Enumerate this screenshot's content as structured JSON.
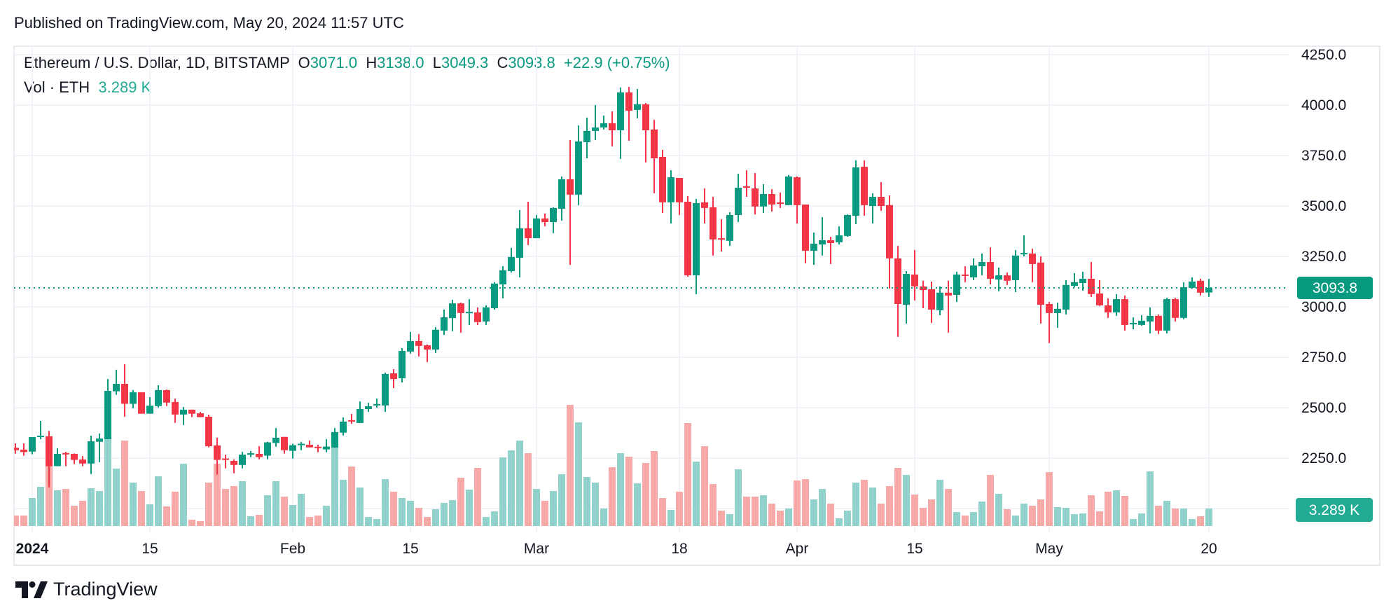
{
  "header": {
    "published": "Published on TradingView.com, May 20, 2024 11:57 UTC"
  },
  "legend": {
    "symbol": "Ethereum / U.S. Dollar, 1D, BITSTAMP",
    "open_label": "O",
    "open": "3071.0",
    "high_label": "H",
    "high": "3138.0",
    "low_label": "L",
    "low": "3049.3",
    "close_label": "C",
    "close": "3093.8",
    "change": "+22.9 (+0.75%)",
    "vol_label": "Vol · ETH",
    "vol_value": "3.289 K"
  },
  "badges": {
    "last_price": "3093.8",
    "last_volume": "3.289 K"
  },
  "footer": {
    "logo_text": "TradingView"
  },
  "colors": {
    "up": "#089981",
    "down": "#F23645",
    "vol_up": "#92d2cc",
    "vol_down": "#f7a9a7",
    "vol_badge": "#22ab94",
    "grid": "#f0f3fa"
  },
  "chart_data": {
    "type": "candlestick",
    "symbol": "ETH/USD",
    "interval": "1D",
    "price_ticks": [
      2250,
      2500,
      2750,
      3000,
      3250,
      3500,
      3750,
      4000,
      4250
    ],
    "price_tick_labels": [
      "2250.0",
      "2500.0",
      "2750.0",
      "3000.0",
      "3250.0",
      "3500.0",
      "3750.0",
      "4000.0",
      "4250.0"
    ],
    "ylim": [
      2000,
      4250
    ],
    "grid": true,
    "volume_unit": "K ETH",
    "time_axis": [
      {
        "label": "2024",
        "date": "2024-01-01",
        "bold": true
      },
      {
        "label": "15",
        "date": "2024-01-15"
      },
      {
        "label": "Feb",
        "date": "2024-02-01"
      },
      {
        "label": "15",
        "date": "2024-02-15"
      },
      {
        "label": "Mar",
        "date": "2024-03-01"
      },
      {
        "label": "18",
        "date": "2024-03-18"
      },
      {
        "label": "Apr",
        "date": "2024-04-01"
      },
      {
        "label": "15",
        "date": "2024-04-15"
      },
      {
        "label": "May",
        "date": "2024-05-01"
      },
      {
        "label": "20",
        "date": "2024-05-20"
      }
    ],
    "columns": [
      "date",
      "open",
      "high",
      "low",
      "close",
      "volume"
    ],
    "candles": [
      [
        "2023-12-30",
        2301,
        2323,
        2272,
        2289,
        1.97
      ],
      [
        "2023-12-31",
        2292,
        2323,
        2262,
        2280,
        1.97
      ],
      [
        "2024-01-01",
        2282,
        2354,
        2269,
        2354,
        5.26
      ],
      [
        "2024-01-02",
        2354,
        2434,
        2344,
        2361,
        7.37
      ],
      [
        "2024-01-03",
        2358,
        2385,
        2105,
        2210,
        11.62
      ],
      [
        "2024-01-04",
        2210,
        2299,
        2210,
        2271,
        6.71
      ],
      [
        "2024-01-05",
        2275,
        2281,
        2210,
        2269,
        6.97
      ],
      [
        "2024-01-06",
        2271,
        2273,
        2220,
        2241,
        3.81
      ],
      [
        "2024-01-07",
        2243,
        2260,
        2210,
        2223,
        4.74
      ],
      [
        "2024-01-08",
        2223,
        2361,
        2171,
        2333,
        7.1
      ],
      [
        "2024-01-09",
        2331,
        2372,
        2230,
        2347,
        6.58
      ],
      [
        "2024-01-10",
        2344,
        2642,
        2344,
        2583,
        16.58
      ],
      [
        "2024-01-11",
        2581,
        2688,
        2564,
        2618,
        10.79
      ],
      [
        "2024-01-12",
        2618,
        2715,
        2455,
        2519,
        16.05
      ],
      [
        "2024-01-13",
        2519,
        2587,
        2498,
        2576,
        8.16
      ],
      [
        "2024-01-14",
        2576,
        2576,
        2470,
        2470,
        6.58
      ],
      [
        "2024-01-15",
        2470,
        2552,
        2470,
        2510,
        4.08
      ],
      [
        "2024-01-16",
        2508,
        2611,
        2501,
        2587,
        9.34
      ],
      [
        "2024-01-17",
        2587,
        2590,
        2508,
        2525,
        3.68
      ],
      [
        "2024-01-18",
        2528,
        2545,
        2425,
        2466,
        6.45
      ],
      [
        "2024-01-19",
        2466,
        2503,
        2414,
        2490,
        11.71
      ],
      [
        "2024-01-20",
        2490,
        2490,
        2453,
        2470,
        1.18
      ],
      [
        "2024-01-21",
        2472,
        2479,
        2453,
        2453,
        0.92
      ],
      [
        "2024-01-22",
        2455,
        2465,
        2303,
        2309,
        8.16
      ],
      [
        "2024-01-23",
        2313,
        2351,
        2168,
        2241,
        11.71
      ],
      [
        "2024-01-24",
        2248,
        2267,
        2199,
        2241,
        6.97
      ],
      [
        "2024-01-25",
        2236,
        2244,
        2175,
        2216,
        7.5
      ],
      [
        "2024-01-26",
        2216,
        2281,
        2199,
        2267,
        8.42
      ],
      [
        "2024-01-27",
        2267,
        2285,
        2255,
        2274,
        1.84
      ],
      [
        "2024-01-28",
        2271,
        2309,
        2244,
        2255,
        2.1
      ],
      [
        "2024-01-29",
        2262,
        2331,
        2244,
        2328,
        5.79
      ],
      [
        "2024-01-30",
        2325,
        2399,
        2307,
        2351,
        8.42
      ],
      [
        "2024-01-31",
        2355,
        2355,
        2272,
        2289,
        5.53
      ],
      [
        "2024-02-01",
        2286,
        2321,
        2248,
        2314,
        3.95
      ],
      [
        "2024-02-02",
        2314,
        2330,
        2289,
        2321,
        6.05
      ],
      [
        "2024-02-03",
        2316,
        2337,
        2303,
        2303,
        1.71
      ],
      [
        "2024-02-04",
        2306,
        2316,
        2279,
        2300,
        1.97
      ],
      [
        "2024-02-05",
        2293,
        2344,
        2279,
        2307,
        3.81
      ],
      [
        "2024-02-06",
        2302,
        2399,
        2302,
        2379,
        14.73
      ],
      [
        "2024-02-07",
        2376,
        2452,
        2362,
        2431,
        8.68
      ],
      [
        "2024-02-08",
        2438,
        2469,
        2420,
        2431,
        11.18
      ],
      [
        "2024-02-09",
        2424,
        2531,
        2424,
        2493,
        7.24
      ],
      [
        "2024-02-10",
        2493,
        2524,
        2479,
        2507,
        1.71
      ],
      [
        "2024-02-11",
        2511,
        2545,
        2500,
        2518,
        1.32
      ],
      [
        "2024-02-12",
        2511,
        2674,
        2479,
        2667,
        8.81
      ],
      [
        "2024-02-13",
        2670,
        2691,
        2597,
        2642,
        6.45
      ],
      [
        "2024-02-14",
        2646,
        2795,
        2625,
        2781,
        5.26
      ],
      [
        "2024-02-15",
        2778,
        2875,
        2768,
        2830,
        4.74
      ],
      [
        "2024-02-16",
        2830,
        2865,
        2754,
        2806,
        3.42
      ],
      [
        "2024-02-17",
        2809,
        2813,
        2726,
        2788,
        1.71
      ],
      [
        "2024-02-18",
        2788,
        2899,
        2771,
        2886,
        3.16
      ],
      [
        "2024-02-19",
        2882,
        2986,
        2861,
        2948,
        4.34
      ],
      [
        "2024-02-20",
        2944,
        3035,
        2879,
        3017,
        4.87
      ],
      [
        "2024-02-21",
        3017,
        3021,
        2872,
        2969,
        9.08
      ],
      [
        "2024-02-22",
        2972,
        3038,
        2910,
        2975,
        6.84
      ],
      [
        "2024-02-23",
        2972,
        2997,
        2910,
        2924,
        10.92
      ],
      [
        "2024-02-24",
        2927,
        3007,
        2910,
        2997,
        1.71
      ],
      [
        "2024-02-25",
        2993,
        3122,
        2986,
        3115,
        2.76
      ],
      [
        "2024-02-26",
        3111,
        3201,
        3042,
        3181,
        12.89
      ],
      [
        "2024-02-27",
        3177,
        3292,
        3170,
        3247,
        14.21
      ],
      [
        "2024-02-28",
        3243,
        3480,
        3146,
        3389,
        16.05
      ],
      [
        "2024-02-29",
        3389,
        3521,
        3306,
        3340,
        13.68
      ],
      [
        "2024-03-01",
        3340,
        3455,
        3340,
        3438,
        6.97
      ],
      [
        "2024-03-02",
        3438,
        3462,
        3399,
        3420,
        4.74
      ],
      [
        "2024-03-03",
        3420,
        3493,
        3365,
        3490,
        6.58
      ],
      [
        "2024-03-04",
        3486,
        3646,
        3427,
        3632,
        9.73
      ],
      [
        "2024-03-05",
        3632,
        3826,
        3208,
        3556,
        22.76
      ],
      [
        "2024-03-06",
        3556,
        3899,
        3504,
        3820,
        19.47
      ],
      [
        "2024-03-07",
        3816,
        3938,
        3736,
        3872,
        9.21
      ],
      [
        "2024-03-08",
        3872,
        4000,
        3826,
        3889,
        8.16
      ],
      [
        "2024-03-09",
        3889,
        3948,
        3879,
        3910,
        3.29
      ],
      [
        "2024-03-10",
        3910,
        3969,
        3795,
        3875,
        11.05
      ],
      [
        "2024-03-11",
        3875,
        4087,
        3733,
        4063,
        13.68
      ],
      [
        "2024-03-12",
        4063,
        4090,
        3823,
        3972,
        13.02
      ],
      [
        "2024-03-13",
        3976,
        4080,
        3934,
        4004,
        8.02
      ],
      [
        "2024-03-14",
        4004,
        4010,
        3715,
        3875,
        11.84
      ],
      [
        "2024-03-15",
        3879,
        3927,
        3563,
        3736,
        14.08
      ],
      [
        "2024-03-16",
        3743,
        3778,
        3465,
        3518,
        5.26
      ],
      [
        "2024-03-17",
        3518,
        3677,
        3413,
        3642,
        3.03
      ],
      [
        "2024-03-18",
        3639,
        3639,
        3455,
        3518,
        6.45
      ],
      [
        "2024-03-19",
        3521,
        3549,
        3149,
        3156,
        19.34
      ],
      [
        "2024-03-20",
        3156,
        3535,
        3063,
        3514,
        12.1
      ],
      [
        "2024-03-21",
        3518,
        3587,
        3413,
        3490,
        15.0
      ],
      [
        "2024-03-22",
        3493,
        3545,
        3254,
        3334,
        7.89
      ],
      [
        "2024-03-23",
        3340,
        3434,
        3274,
        3334,
        2.89
      ],
      [
        "2024-03-24",
        3327,
        3469,
        3302,
        3455,
        2.24
      ],
      [
        "2024-03-25",
        3455,
        3660,
        3420,
        3590,
        10.66
      ],
      [
        "2024-03-26",
        3597,
        3677,
        3545,
        3590,
        5.53
      ],
      [
        "2024-03-27",
        3587,
        3663,
        3458,
        3497,
        5.53
      ],
      [
        "2024-03-28",
        3497,
        3608,
        3465,
        3559,
        5.79
      ],
      [
        "2024-03-29",
        3559,
        3583,
        3472,
        3507,
        4.21
      ],
      [
        "2024-03-30",
        3517,
        3566,
        3490,
        3514,
        2.89
      ],
      [
        "2024-03-31",
        3504,
        3653,
        3504,
        3646,
        3.29
      ],
      [
        "2024-04-01",
        3642,
        3646,
        3413,
        3504,
        8.55
      ],
      [
        "2024-04-02",
        3507,
        3507,
        3215,
        3278,
        8.81
      ],
      [
        "2024-04-03",
        3278,
        3368,
        3208,
        3313,
        5.0
      ],
      [
        "2024-04-04",
        3309,
        3444,
        3254,
        3330,
        6.97
      ],
      [
        "2024-04-05",
        3330,
        3347,
        3212,
        3316,
        4.21
      ],
      [
        "2024-04-06",
        3320,
        3399,
        3309,
        3354,
        1.45
      ],
      [
        "2024-04-07",
        3351,
        3458,
        3347,
        3455,
        2.89
      ],
      [
        "2024-04-08",
        3451,
        3726,
        3410,
        3691,
        8.16
      ],
      [
        "2024-04-09",
        3694,
        3726,
        3451,
        3504,
        8.68
      ],
      [
        "2024-04-10",
        3500,
        3563,
        3413,
        3545,
        7.24
      ],
      [
        "2024-04-11",
        3545,
        3618,
        3476,
        3500,
        4.21
      ],
      [
        "2024-04-12",
        3504,
        3552,
        3090,
        3240,
        7.5
      ],
      [
        "2024-04-13",
        3240,
        3302,
        2851,
        3014,
        10.92
      ],
      [
        "2024-04-14",
        3010,
        3177,
        2917,
        3163,
        9.6
      ],
      [
        "2024-04-15",
        3160,
        3281,
        3031,
        3101,
        5.92
      ],
      [
        "2024-04-16",
        3101,
        3129,
        2993,
        3083,
        3.42
      ],
      [
        "2024-04-17",
        3087,
        3125,
        2920,
        2986,
        5.0
      ],
      [
        "2024-04-18",
        2983,
        3101,
        2958,
        3070,
        8.68
      ],
      [
        "2024-04-19",
        3070,
        3129,
        2872,
        3056,
        6.97
      ],
      [
        "2024-04-20",
        3059,
        3174,
        3024,
        3160,
        2.63
      ],
      [
        "2024-04-21",
        3160,
        3201,
        3122,
        3153,
        1.97
      ],
      [
        "2024-04-22",
        3146,
        3240,
        3132,
        3205,
        2.63
      ],
      [
        "2024-04-23",
        3201,
        3264,
        3156,
        3222,
        4.6
      ],
      [
        "2024-04-24",
        3222,
        3295,
        3111,
        3139,
        9.6
      ],
      [
        "2024-04-25",
        3135,
        3194,
        3076,
        3156,
        6.05
      ],
      [
        "2024-04-26",
        3156,
        3170,
        3108,
        3129,
        3.16
      ],
      [
        "2024-04-27",
        3132,
        3281,
        3073,
        3254,
        1.97
      ],
      [
        "2024-04-28",
        3260,
        3354,
        3250,
        3267,
        4.21
      ],
      [
        "2024-04-29",
        3264,
        3288,
        3122,
        3212,
        3.81
      ],
      [
        "2024-04-30",
        3219,
        3250,
        2917,
        3010,
        5.0
      ],
      [
        "2024-05-01",
        3014,
        3024,
        2820,
        2969,
        10.13
      ],
      [
        "2024-05-02",
        2969,
        3021,
        2896,
        2990,
        3.55
      ],
      [
        "2024-05-03",
        2986,
        3132,
        2962,
        3108,
        3.42
      ],
      [
        "2024-05-04",
        3104,
        3167,
        3097,
        3122,
        2.24
      ],
      [
        "2024-05-05",
        3118,
        3174,
        3080,
        3139,
        2.37
      ],
      [
        "2024-05-06",
        3139,
        3222,
        3049,
        3063,
        5.79
      ],
      [
        "2024-05-07",
        3066,
        3132,
        3004,
        3007,
        2.76
      ],
      [
        "2024-05-08",
        3007,
        3042,
        2945,
        2972,
        6.45
      ],
      [
        "2024-05-09",
        2972,
        3063,
        2955,
        3038,
        6.71
      ],
      [
        "2024-05-10",
        3038,
        3056,
        2882,
        2910,
        5.66
      ],
      [
        "2024-05-11",
        2913,
        2948,
        2889,
        2920,
        1.32
      ],
      [
        "2024-05-12",
        2910,
        2958,
        2906,
        2931,
        2.37
      ],
      [
        "2024-05-13",
        2927,
        2997,
        2868,
        2955,
        10.26
      ],
      [
        "2024-05-14",
        2955,
        2962,
        2865,
        2882,
        3.81
      ],
      [
        "2024-05-15",
        2882,
        3045,
        2868,
        3038,
        4.74
      ],
      [
        "2024-05-16",
        3038,
        3045,
        2927,
        2945,
        3.29
      ],
      [
        "2024-05-17",
        2945,
        3122,
        2938,
        3097,
        3.29
      ],
      [
        "2024-05-18",
        3094,
        3146,
        3090,
        3125,
        1.32
      ],
      [
        "2024-05-19",
        3129,
        3139,
        3056,
        3070,
        1.84
      ],
      [
        "2024-05-20",
        3071,
        3138,
        3049.3,
        3093.8,
        3.289
      ]
    ],
    "last_price": 3093.8,
    "last_volume_k": 3.289
  }
}
